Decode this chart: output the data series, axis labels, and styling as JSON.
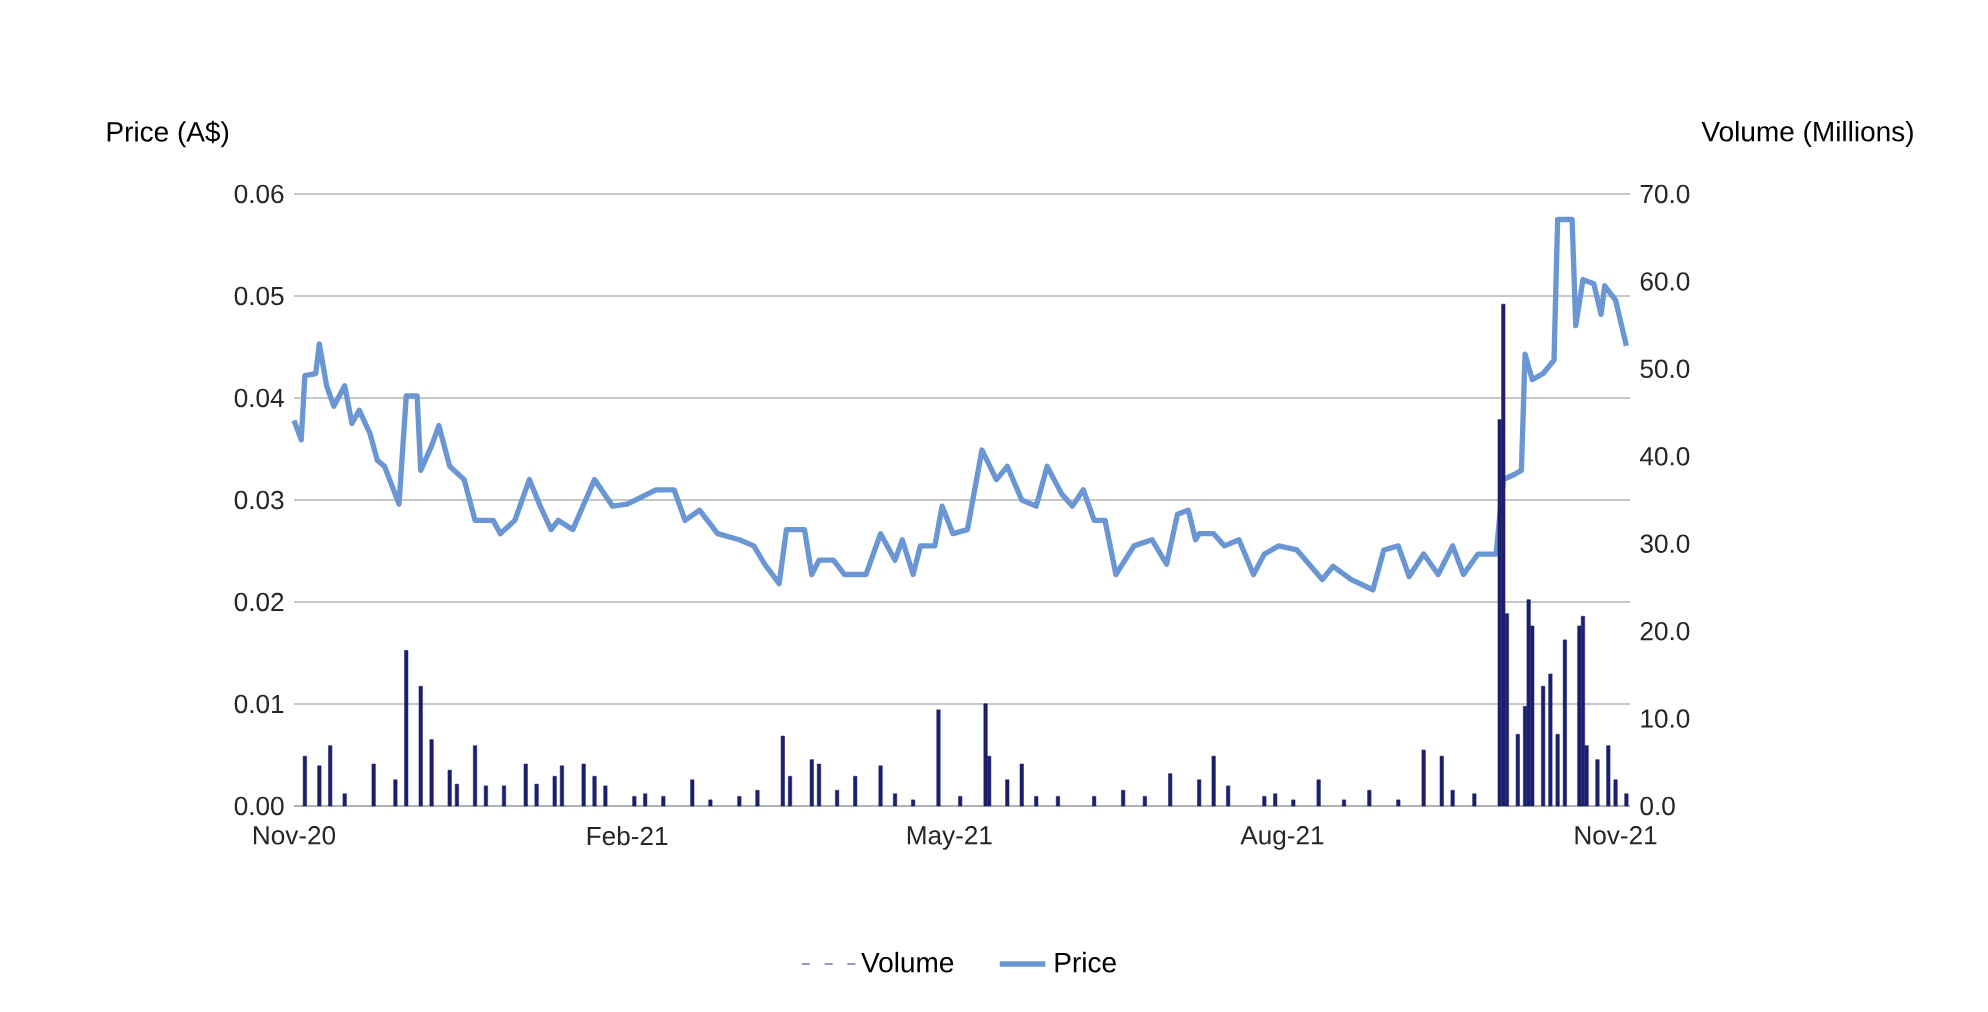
{
  "chart_data": {
    "type": "line",
    "ylabel": "Price (A$)",
    "y2label": "Volume (Millions)",
    "legend": "bottom",
    "grid": "y",
    "xlim": [
      "2020-11-01",
      "2021-11-05"
    ],
    "xticks": [
      {
        "value": "2020-11-01",
        "label": "Nov-20"
      },
      {
        "value": "2021-02-01",
        "label": "Feb-21"
      },
      {
        "value": "2021-05-01",
        "label": "May-21"
      },
      {
        "value": "2021-08-01",
        "label": "Aug-21"
      },
      {
        "value": "2021-11-01",
        "label": "Nov-21"
      }
    ],
    "ylim": [
      0,
      0.06
    ],
    "yticks": [
      {
        "value": 0,
        "label": "0.00"
      },
      {
        "value": 0.01,
        "label": "0.01"
      },
      {
        "value": 0.02,
        "label": "0.02"
      },
      {
        "value": 0.03,
        "label": "0.03"
      },
      {
        "value": 0.04,
        "label": "0.04"
      },
      {
        "value": 0.05,
        "label": "0.05"
      },
      {
        "value": 0.06,
        "label": "0.06"
      }
    ],
    "y2lim": [
      0,
      70
    ],
    "y2ticks": [
      {
        "value": 0,
        "label": "0.0"
      },
      {
        "value": 10,
        "label": "10.0"
      },
      {
        "value": 20,
        "label": "20.0"
      },
      {
        "value": 30,
        "label": "30.0"
      },
      {
        "value": 40,
        "label": "40.0"
      },
      {
        "value": 50,
        "label": "50.0"
      },
      {
        "value": 60,
        "label": "60.0"
      },
      {
        "value": 70,
        "label": "70.0"
      }
    ],
    "series": [
      {
        "name": "Volume",
        "type": "bar",
        "axis": "y2",
        "color": "#1c1f6b",
        "x": [
          "2020-11-04",
          "2020-11-08",
          "2020-11-11",
          "2020-11-15",
          "2020-11-23",
          "2020-11-29",
          "2020-12-02",
          "2020-12-06",
          "2020-12-09",
          "2020-12-14",
          "2020-12-16",
          "2020-12-21",
          "2020-12-24",
          "2020-12-29",
          "2021-01-04",
          "2021-01-07",
          "2021-01-12",
          "2021-01-14",
          "2021-01-20",
          "2021-01-23",
          "2021-01-26",
          "2021-02-03",
          "2021-02-06",
          "2021-02-11",
          "2021-02-19",
          "2021-02-24",
          "2021-03-04",
          "2021-03-09",
          "2021-03-16",
          "2021-03-18",
          "2021-03-24",
          "2021-03-26",
          "2021-03-31",
          "2021-04-05",
          "2021-04-12",
          "2021-04-16",
          "2021-04-21",
          "2021-04-28",
          "2021-05-04",
          "2021-05-11",
          "2021-05-12",
          "2021-05-17",
          "2021-05-21",
          "2021-05-25",
          "2021-05-31",
          "2021-06-10",
          "2021-06-18",
          "2021-06-24",
          "2021-07-01",
          "2021-07-09",
          "2021-07-13",
          "2021-07-17",
          "2021-07-27",
          "2021-07-30",
          "2021-08-04",
          "2021-08-11",
          "2021-08-18",
          "2021-08-25",
          "2021-09-02",
          "2021-09-09",
          "2021-09-14",
          "2021-09-17",
          "2021-09-23",
          "2021-09-30",
          "2021-10-01",
          "2021-10-02",
          "2021-10-05",
          "2021-10-07",
          "2021-10-08",
          "2021-10-09",
          "2021-10-12",
          "2021-10-14",
          "2021-10-16",
          "2021-10-18",
          "2021-10-22",
          "2021-10-23",
          "2021-10-24",
          "2021-10-27",
          "2021-10-30",
          "2021-11-01",
          "2021-11-04"
        ],
        "values": [
          5.7,
          4.6,
          6.9,
          1.4,
          4.8,
          3.0,
          17.8,
          13.7,
          7.6,
          4.1,
          2.5,
          6.9,
          2.3,
          2.3,
          4.8,
          2.5,
          3.4,
          4.6,
          4.8,
          3.4,
          2.3,
          1.1,
          1.4,
          1.1,
          3.0,
          0.7,
          1.1,
          1.8,
          8.0,
          3.4,
          5.3,
          4.8,
          1.8,
          3.4,
          4.6,
          1.4,
          0.7,
          11.0,
          1.1,
          11.7,
          5.7,
          3.0,
          4.8,
          1.1,
          1.1,
          1.1,
          1.8,
          1.1,
          3.7,
          3.0,
          5.7,
          2.3,
          1.1,
          1.4,
          0.7,
          3.0,
          0.7,
          1.8,
          0.7,
          6.4,
          5.7,
          1.8,
          1.4,
          44.2,
          57.4,
          22.0,
          8.2,
          11.4,
          23.6,
          20.6,
          13.7,
          15.1,
          8.2,
          19.0,
          20.6,
          21.7,
          6.9,
          5.3,
          6.9,
          3.0,
          1.4
        ]
      },
      {
        "name": "Price",
        "color": "#6a96d4",
        "x": [
          "2020-11-01",
          "2020-11-03",
          "2020-11-04",
          "2020-11-07",
          "2020-11-08",
          "2020-11-10",
          "2020-11-12",
          "2020-11-15",
          "2020-11-17",
          "2020-11-19",
          "2020-11-22",
          "2020-11-24",
          "2020-11-26",
          "2020-11-30",
          "2020-12-02",
          "2020-12-05",
          "2020-12-06",
          "2020-12-09",
          "2020-12-11",
          "2020-12-14",
          "2020-12-18",
          "2020-12-21",
          "2020-12-26",
          "2020-12-28",
          "2021-01-01",
          "2021-01-05",
          "2021-01-08",
          "2021-01-11",
          "2021-01-13",
          "2021-01-17",
          "2021-01-23",
          "2021-01-28",
          "2021-02-01",
          "2021-02-09",
          "2021-02-14",
          "2021-02-17",
          "2021-02-21",
          "2021-02-26",
          "2021-03-04",
          "2021-03-08",
          "2021-03-11",
          "2021-03-15",
          "2021-03-17",
          "2021-03-22",
          "2021-03-24",
          "2021-03-26",
          "2021-03-30",
          "2021-04-02",
          "2021-04-08",
          "2021-04-12",
          "2021-04-16",
          "2021-04-18",
          "2021-04-21",
          "2021-04-23",
          "2021-04-27",
          "2021-04-29",
          "2021-05-02",
          "2021-05-06",
          "2021-05-10",
          "2021-05-14",
          "2021-05-17",
          "2021-05-21",
          "2021-05-25",
          "2021-05-28",
          "2021-06-01",
          "2021-06-04",
          "2021-06-07",
          "2021-06-10",
          "2021-06-13",
          "2021-06-16",
          "2021-06-21",
          "2021-06-26",
          "2021-06-30",
          "2021-07-03",
          "2021-07-06",
          "2021-07-08",
          "2021-07-09",
          "2021-07-13",
          "2021-07-16",
          "2021-07-20",
          "2021-07-24",
          "2021-07-27",
          "2021-07-31",
          "2021-08-05",
          "2021-08-12",
          "2021-08-15",
          "2021-08-20",
          "2021-08-26",
          "2021-08-29",
          "2021-09-02",
          "2021-09-05",
          "2021-09-09",
          "2021-09-13",
          "2021-09-17",
          "2021-09-20",
          "2021-09-24",
          "2021-09-29",
          "2021-10-01",
          "2021-10-04",
          "2021-10-06",
          "2021-10-07",
          "2021-10-09",
          "2021-10-12",
          "2021-10-15",
          "2021-10-16",
          "2021-10-20",
          "2021-10-21",
          "2021-10-23",
          "2021-10-26",
          "2021-10-28",
          "2021-10-29",
          "2021-11-01",
          "2021-11-04"
        ],
        "values": [
          0.0378,
          0.0359,
          0.0422,
          0.0424,
          0.0453,
          0.0412,
          0.0392,
          0.0412,
          0.0375,
          0.0388,
          0.0365,
          0.0339,
          0.0333,
          0.0296,
          0.0402,
          0.0402,
          0.0329,
          0.0353,
          0.0373,
          0.0333,
          0.032,
          0.028,
          0.028,
          0.0267,
          0.028,
          0.032,
          0.0294,
          0.0271,
          0.028,
          0.0271,
          0.032,
          0.0294,
          0.0296,
          0.031,
          0.031,
          0.028,
          0.029,
          0.0267,
          0.0261,
          0.0255,
          0.0237,
          0.0218,
          0.0271,
          0.0271,
          0.0227,
          0.0241,
          0.0241,
          0.0227,
          0.0227,
          0.0267,
          0.0241,
          0.0261,
          0.0227,
          0.0255,
          0.0255,
          0.0294,
          0.0267,
          0.0271,
          0.0349,
          0.032,
          0.0333,
          0.03,
          0.0294,
          0.0333,
          0.0306,
          0.0294,
          0.031,
          0.028,
          0.028,
          0.0227,
          0.0255,
          0.0261,
          0.0237,
          0.0286,
          0.029,
          0.0261,
          0.0267,
          0.0267,
          0.0255,
          0.0261,
          0.0227,
          0.0247,
          0.0255,
          0.0251,
          0.0222,
          0.0235,
          0.0222,
          0.0212,
          0.0251,
          0.0255,
          0.0225,
          0.0247,
          0.0227,
          0.0255,
          0.0227,
          0.0247,
          0.0247,
          0.032,
          0.0325,
          0.0329,
          0.0443,
          0.0418,
          0.0424,
          0.0437,
          0.0575,
          0.0575,
          0.0471,
          0.0516,
          0.0512,
          0.0482,
          0.051,
          0.0496,
          0.0451
        ]
      }
    ]
  }
}
